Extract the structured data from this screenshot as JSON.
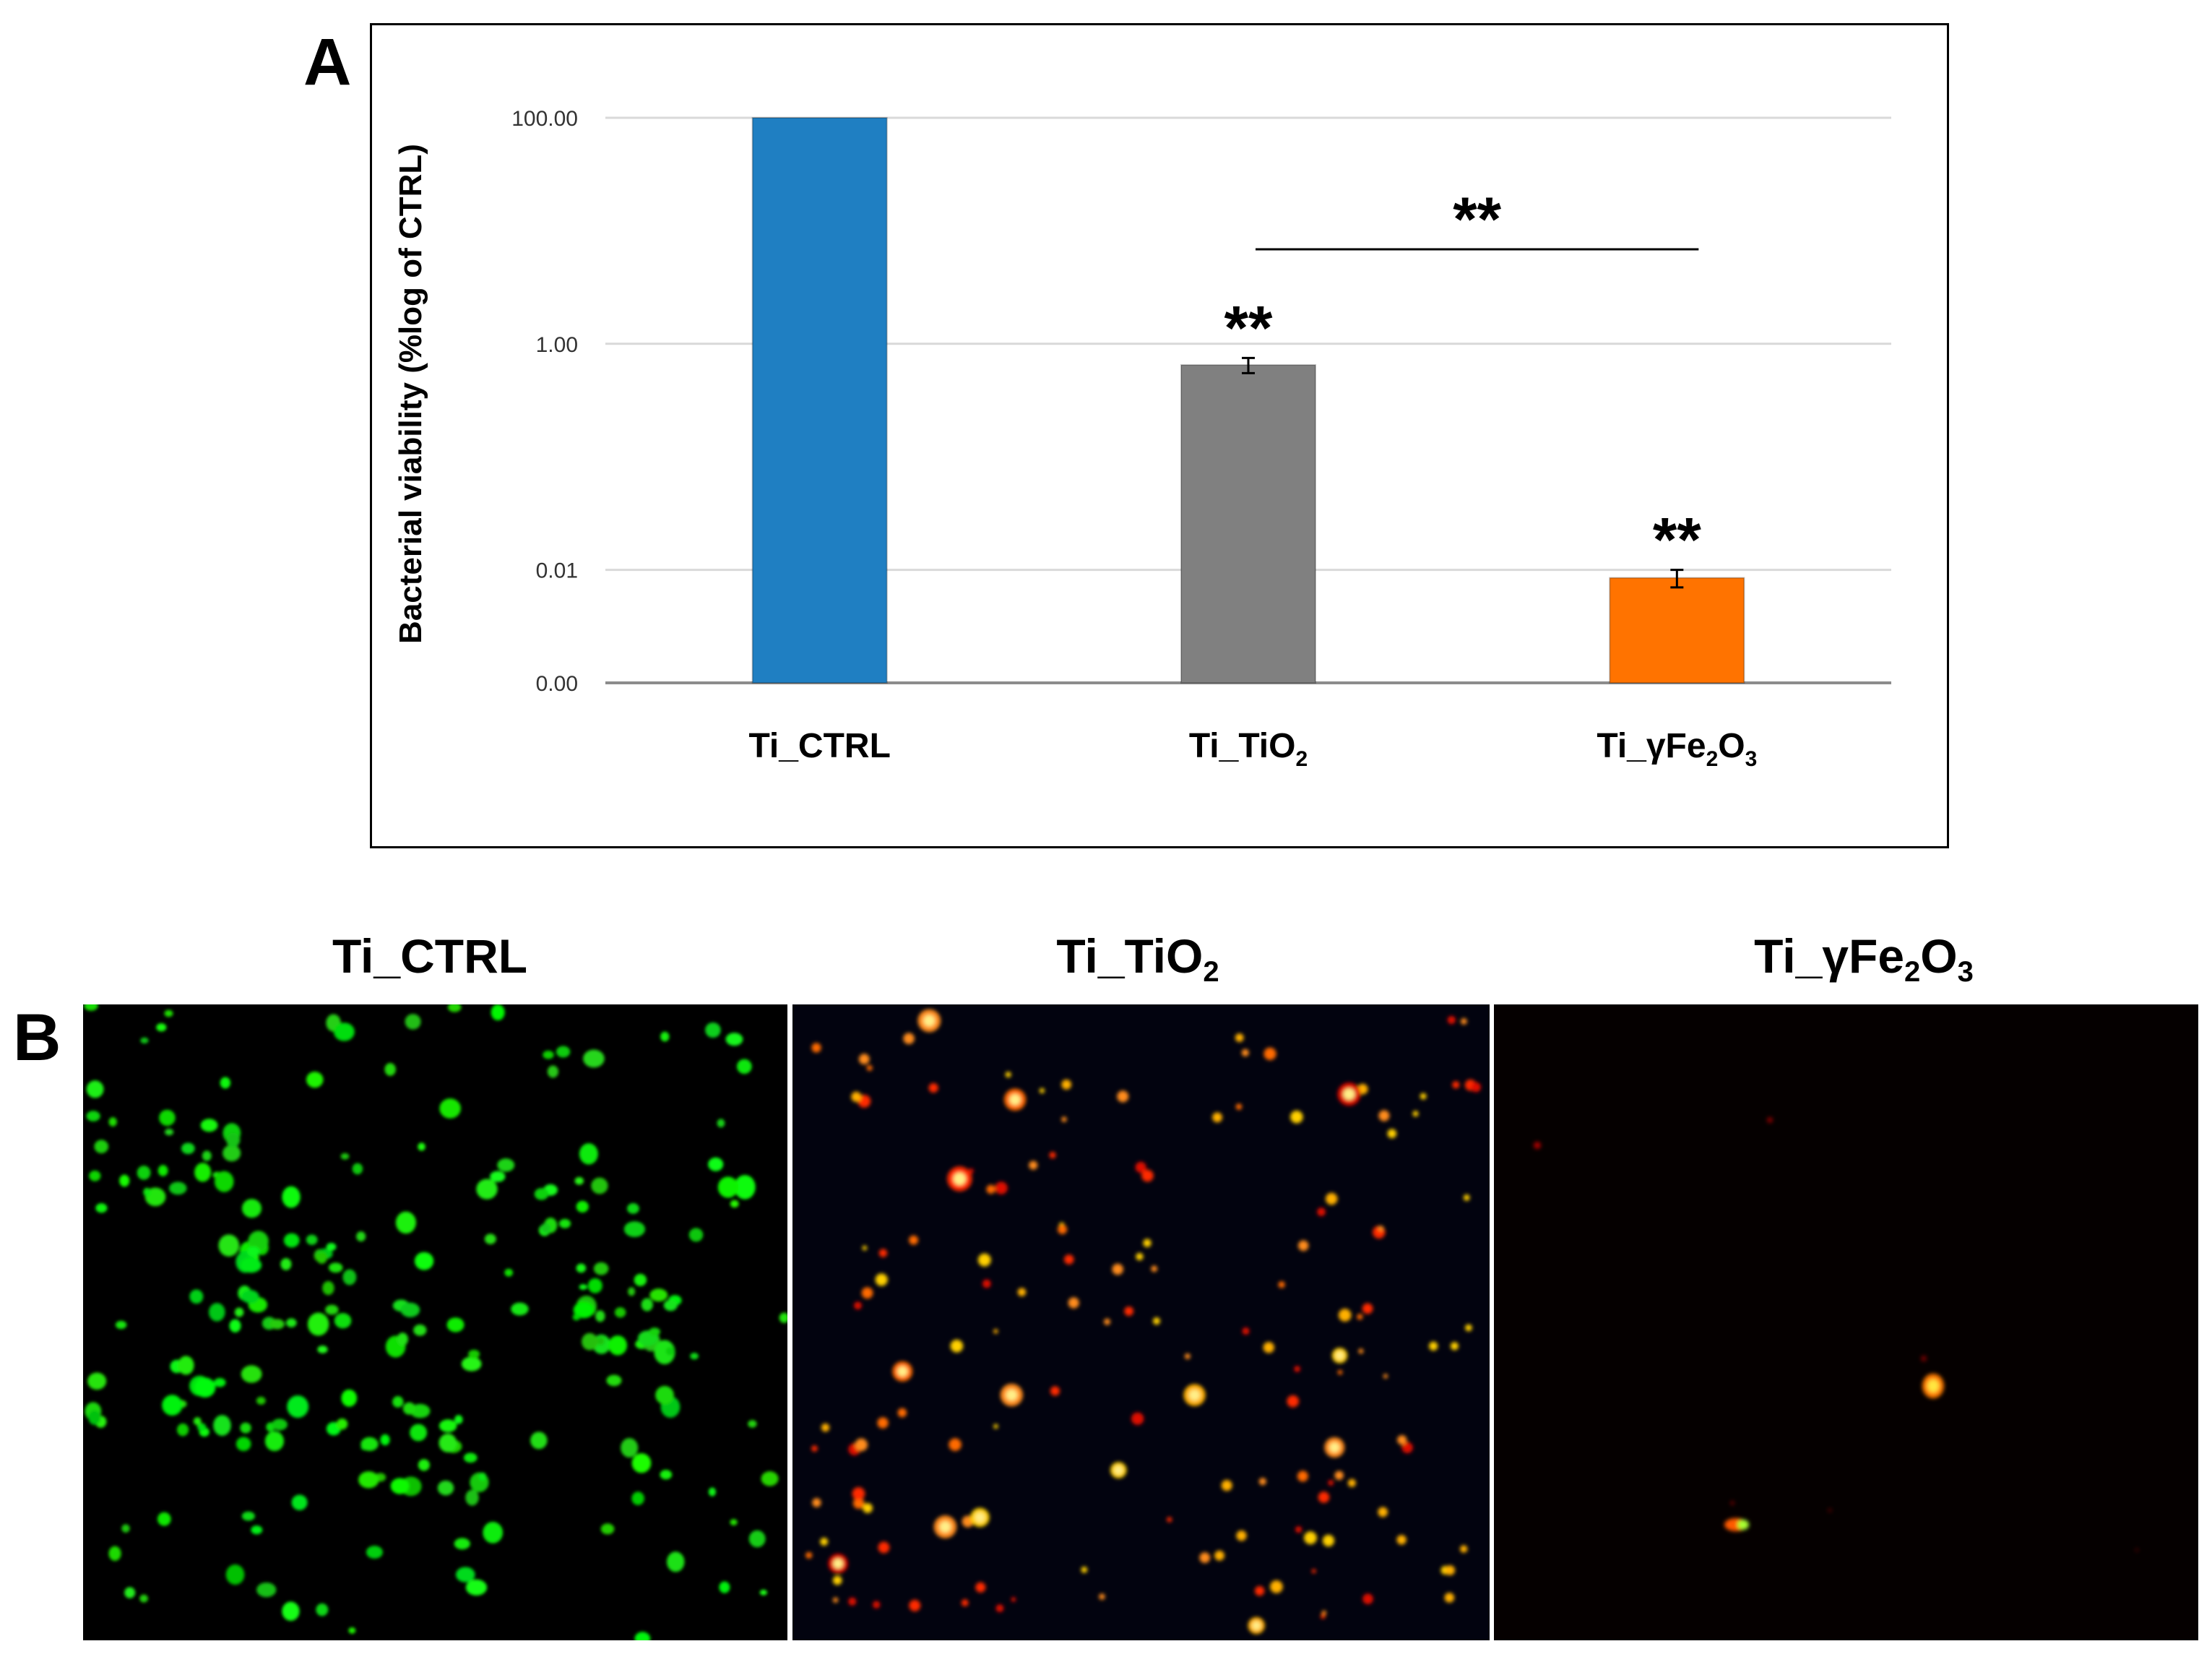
{
  "panel_a_label": "A",
  "panel_b_label": "B",
  "chart_data": {
    "type": "bar",
    "ylabel": "Bacterial viability (%log of CTRL)",
    "yscale": "log",
    "ylim": [
      0.001,
      100
    ],
    "yticks": [
      100,
      1,
      0.01,
      0.001
    ],
    "ytick_labels": [
      "100.00",
      "1.00",
      "0.01",
      "0.00"
    ],
    "grid": true,
    "categories": [
      {
        "main": "Ti_CTRL",
        "parts": [
          {
            "t": "Ti_CTRL"
          }
        ]
      },
      {
        "main": "Ti_TiO2",
        "parts": [
          {
            "t": "Ti_TiO"
          },
          {
            "t": "2",
            "sub": true
          }
        ]
      },
      {
        "main": "Ti_γFe2O3",
        "parts": [
          {
            "t": "Ti_γFe"
          },
          {
            "t": "2",
            "sub": true
          },
          {
            "t": "O"
          },
          {
            "t": "3",
            "sub": true
          }
        ]
      }
    ],
    "values": [
      100,
      0.65,
      0.0085
    ],
    "errors": [
      0,
      0.1,
      0.0015
    ],
    "colors": [
      "#1f7fc2",
      "#808080",
      "#ff7300"
    ],
    "significance": [
      {
        "bar": 1,
        "label": "**"
      },
      {
        "bar": 2,
        "label": "**"
      }
    ],
    "comparison": {
      "from": 1,
      "to": 2,
      "label": "**"
    }
  },
  "micrographs": [
    {
      "title_main": "Ti_CTRL",
      "title_sub": "",
      "title_tail": "",
      "title_sub2": "",
      "stain": "green-live"
    },
    {
      "title_main": "Ti_TiO",
      "title_sub": "2",
      "title_tail": "",
      "title_sub2": "",
      "stain": "red-orange-dead"
    },
    {
      "title_main": "Ti_γFe",
      "title_sub": "2",
      "title_tail": "O",
      "title_sub2": "3",
      "stain": "sparse-dead"
    }
  ]
}
